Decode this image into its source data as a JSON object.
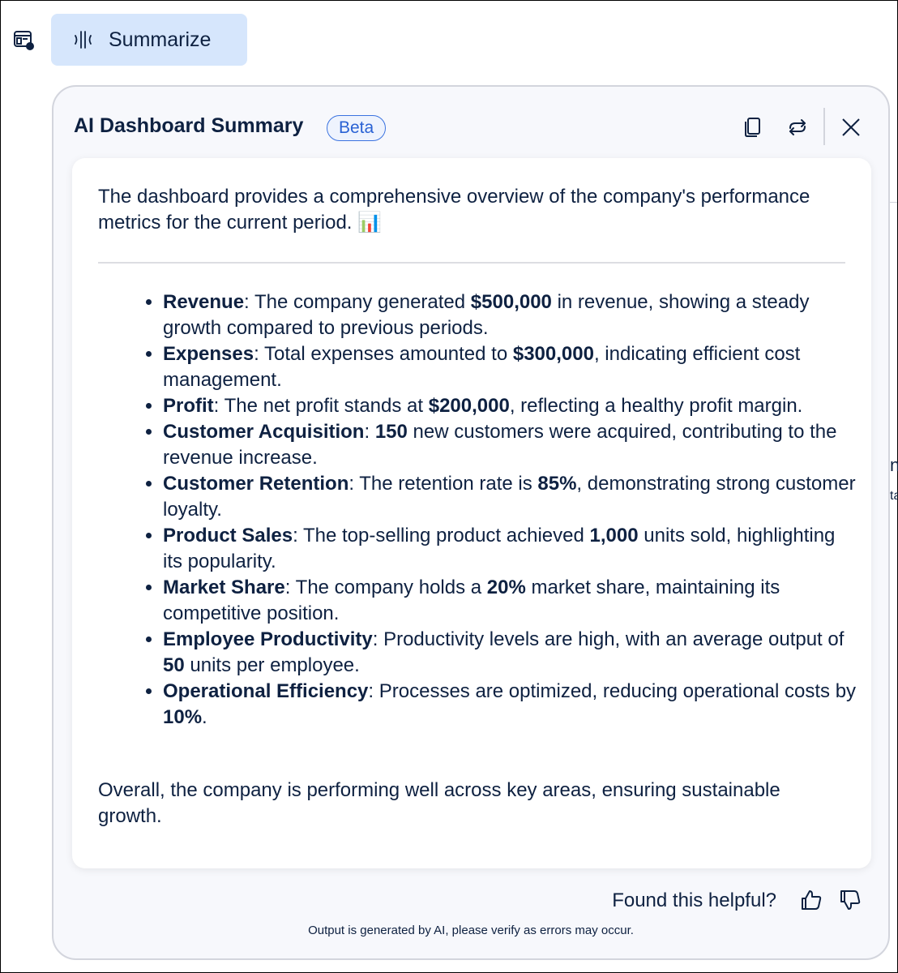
{
  "toolbar": {
    "summarize_label": "Summarize"
  },
  "panel": {
    "title": "AI Dashboard Summary",
    "badge": "Beta",
    "intro": "The dashboard provides a comprehensive overview of the company's performance metrics for the current period. 📊",
    "items": [
      {
        "label": "Revenue",
        "pre": ": The company generated ",
        "value": "$500,000",
        "post": " in revenue, showing a steady growth compared to previous periods."
      },
      {
        "label": "Expenses",
        "pre": ": Total expenses amounted to ",
        "value": "$300,000",
        "post": ", indicating efficient cost management."
      },
      {
        "label": "Profit",
        "pre": ": The net profit stands at ",
        "value": "$200,000",
        "post": ", reflecting a healthy profit margin."
      },
      {
        "label": "Customer Acquisition",
        "pre": ": ",
        "value": "150",
        "post": " new customers were acquired, contributing to the revenue increase."
      },
      {
        "label": "Customer Retention",
        "pre": ": The retention rate is ",
        "value": "85%",
        "post": ", demonstrating strong customer loyalty."
      },
      {
        "label": "Product Sales",
        "pre": ": The top-selling product achieved ",
        "value": "1,000",
        "post": " units sold, highlighting its popularity."
      },
      {
        "label": "Market Share",
        "pre": ": The company holds a ",
        "value": "20%",
        "post": " market share, maintaining its competitive position."
      },
      {
        "label": "Employee Productivity",
        "pre": ": Productivity levels are high, with an average output of ",
        "value": "50",
        "post": " units per employee."
      },
      {
        "label": "Operational Efficiency",
        "pre": ": Processes are optimized, reducing operational costs by ",
        "value": "10%",
        "post": "."
      }
    ],
    "outro": "Overall, the company is performing well across key areas, ensuring sustainable growth.",
    "feedback_prompt": "Found this helpful?",
    "disclaimer": "Output is generated by AI, please verify as errors may occur."
  },
  "background": {
    "fragment1": "n",
    "fragment2": "ta"
  },
  "colors": {
    "accent": "#2a62d4",
    "button_bg": "#d6e6fc",
    "text": "#0e2141"
  }
}
